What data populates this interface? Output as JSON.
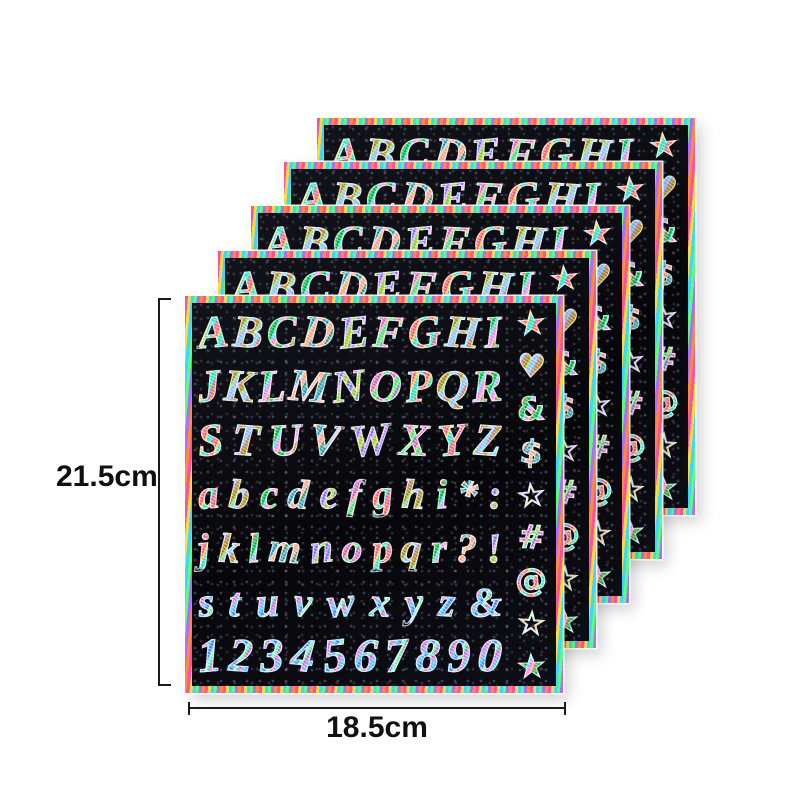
{
  "product": {
    "sheet_count": 5
  },
  "sheet": {
    "rows": [
      "ABCDEFGHI",
      "JKLMNOPQR",
      "STUVWXYZ",
      "abcdefghi*:",
      "jklmnopqr?!",
      "stuvwxyz&",
      "1234567890"
    ],
    "symbol_column": "★♥&$☆#@☆★",
    "symbol_names": [
      "star-filled",
      "heart",
      "ampersand",
      "dollar-sign",
      "star-outline",
      "hash",
      "at-sign",
      "star-outline",
      "star-filled"
    ]
  },
  "annotations": {
    "height_label": "21.5cm",
    "width_label": "18.5cm"
  },
  "colors": {
    "background": "#ffffff",
    "sheet_black": "#0a0a0e",
    "annotation_line": "#1a1a1a",
    "annotation_text": "#111111",
    "glitter_palette": [
      "#ff4fa3",
      "#ffd93d",
      "#3dd6ff",
      "#58ff7a",
      "#b06bff",
      "#ff8a3d"
    ]
  }
}
